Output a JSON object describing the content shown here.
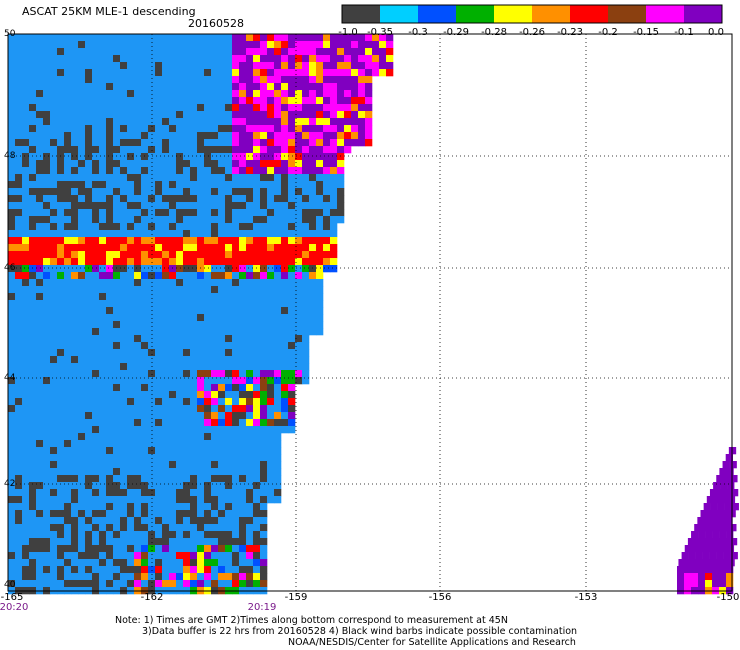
{
  "title": "ASCAT 25KM MLE-1 descending",
  "date": "20160528",
  "colorbar": {
    "labels": [
      "-1.0",
      "-0.35",
      "-0.3",
      "-0.29",
      "-0.28",
      "-0.26",
      "-0.23",
      "-0.2",
      "-0.15",
      "-0.1",
      "0.0"
    ],
    "colors": [
      "#404040",
      "#00cfff",
      "#0050ff",
      "#00b000",
      "#ffff00",
      "#ff9000",
      "#ff0000",
      "#8b4010",
      "#ff00ff",
      "#8000c0"
    ]
  },
  "axes": {
    "lat_ticks": [
      "50",
      "48",
      "46",
      "44",
      "42",
      "40"
    ],
    "lon_ticks": [
      "-165",
      "-162",
      "-159",
      "-156",
      "-153",
      "-150"
    ],
    "times": [
      "20:20",
      "20:19"
    ]
  },
  "palette": {
    "background_blue": "#1e96f5",
    "dark_gray": "#404040",
    "purple": "#8000c0"
  },
  "notes": [
    "Note: 1) Times are GMT 2)Times along bottom correspond to measurement at 45N",
    "3)Data buffer is 22 hrs from 20160528 4) Black wind barbs indicate possible contamination",
    "NOAA/NESDIS/Center for Satellite Applications and Research"
  ]
}
